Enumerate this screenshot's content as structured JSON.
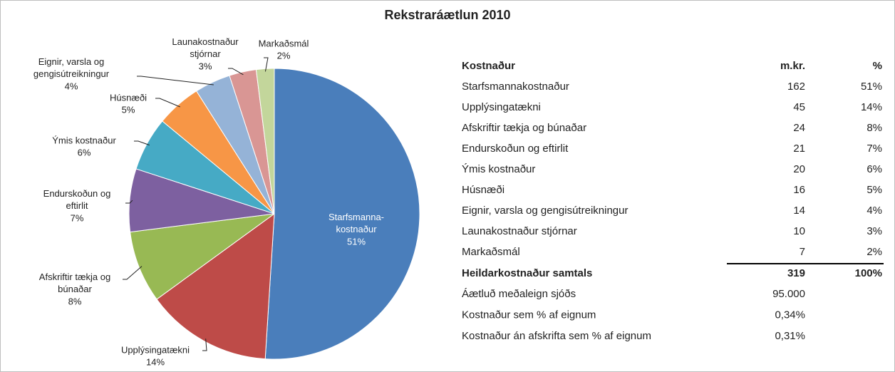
{
  "chart_data": {
    "type": "pie",
    "title": "Rekstraráætlun 2010",
    "categories": [
      "Starfsmanna-\nkostnaður",
      "Upplýsingatækni",
      "Afskriftir tækja og\nbúnaðar",
      "Endurskoðun og\neftirlit",
      "Ýmis kostnaður",
      "Húsnæði",
      "Eignir, varsla og\ngengisútreikningur",
      "Launakostnaður\nstjórnar",
      "Markaðsmál"
    ],
    "values": [
      51,
      14,
      8,
      7,
      6,
      5,
      4,
      3,
      2
    ],
    "value_labels": [
      "51%",
      "14%",
      "8%",
      "7%",
      "6%",
      "5%",
      "4%",
      "3%",
      "2%"
    ],
    "colors": [
      "#4a7ebb",
      "#be4b48",
      "#98b954",
      "#7d60a0",
      "#46aac5",
      "#f79646",
      "#95b3d7",
      "#d99694",
      "#c3d69b"
    ]
  },
  "table": {
    "header": [
      "Kostnaður",
      "m.kr.",
      "%"
    ],
    "rows": [
      [
        "Starfsmannakostnaður",
        "162",
        "51%"
      ],
      [
        "Upplýsingatækni",
        "45",
        "14%"
      ],
      [
        "Afskriftir tækja og búnaðar",
        "24",
        "8%"
      ],
      [
        "Endurskoðun og eftirlit",
        "21",
        "7%"
      ],
      [
        "Ýmis kostnaður",
        "20",
        "6%"
      ],
      [
        "Húsnæði",
        "16",
        "5%"
      ],
      [
        "Eignir, varsla og gengisútreikningur",
        "14",
        "4%"
      ],
      [
        "Launakostnaður stjórnar",
        "10",
        "3%"
      ],
      [
        "Markaðsmál",
        "7",
        "2%"
      ]
    ],
    "total": [
      "Heildarkostnaður samtals",
      "319",
      "100%"
    ],
    "extra": [
      [
        "Áætluð meðaleign sjóðs",
        "95.000"
      ],
      [
        "Kostnaður sem % af eignum",
        "0,34%"
      ],
      [
        "Kostnaður án afskrifta sem % af eignum",
        "0,31%"
      ]
    ]
  }
}
